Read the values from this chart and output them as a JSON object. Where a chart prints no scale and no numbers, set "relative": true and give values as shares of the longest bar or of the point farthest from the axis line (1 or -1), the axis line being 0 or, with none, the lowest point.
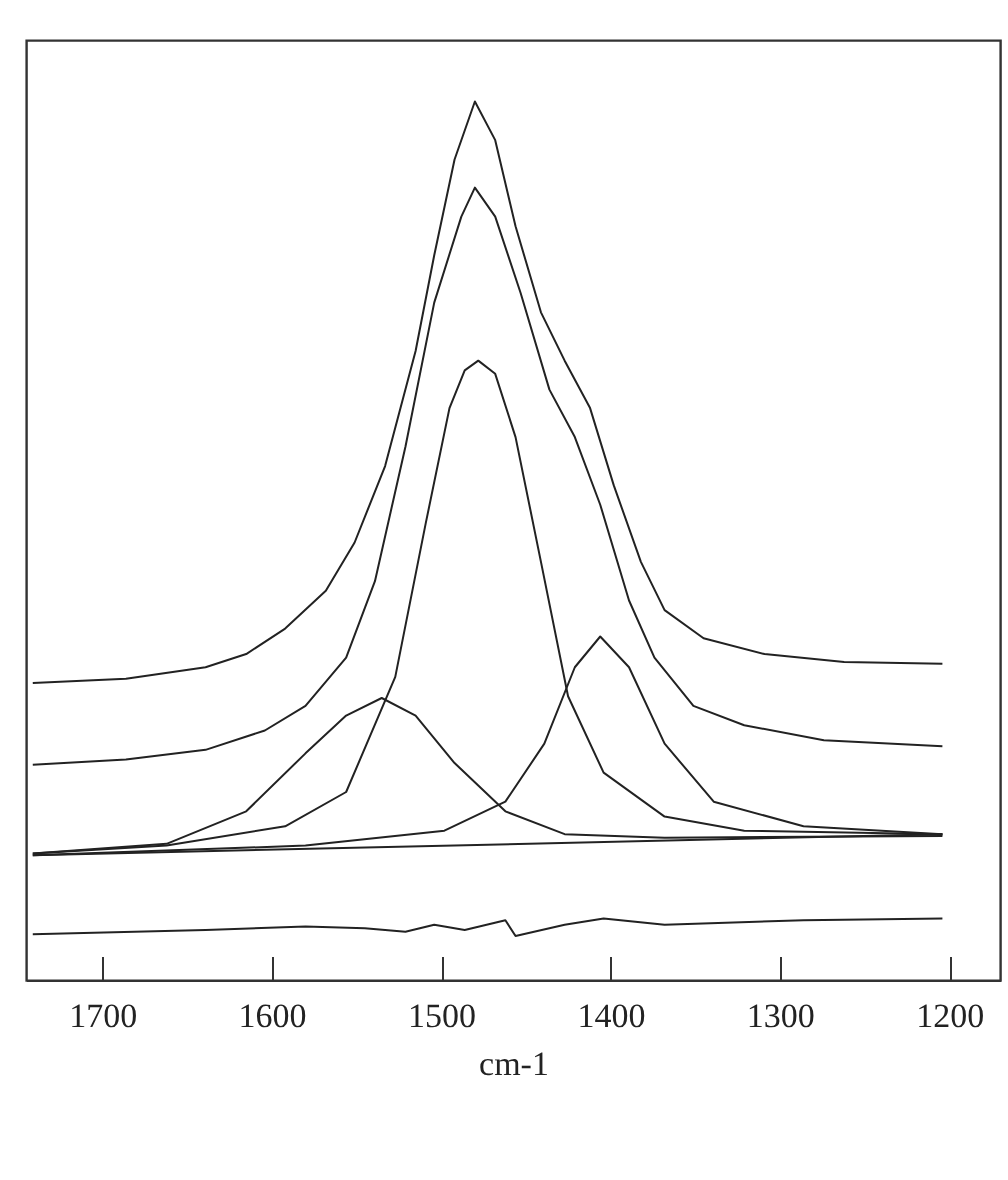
{
  "chart_data": {
    "type": "line",
    "xlabel": "cm-1",
    "relative": true,
    "xlim": [
      1745,
      1170
    ],
    "xticks": [
      1700,
      1600,
      1500,
      1400,
      1300,
      1200
    ],
    "marker": "none",
    "line_style": "solid",
    "series": [
      {
        "color": "#222222",
        "x": [
          1741,
          1686,
          1639,
          1615,
          1592,
          1568,
          1551,
          1533,
          1515,
          1504,
          1492,
          1480,
          1468,
          1456,
          1441,
          1427,
          1412,
          1398,
          1382,
          1368,
          1345,
          1309,
          1262,
          1204
        ],
        "values": [
          0.338,
          0.343,
          0.356,
          0.371,
          0.4,
          0.443,
          0.498,
          0.585,
          0.716,
          0.825,
          0.934,
          1.0,
          0.956,
          0.858,
          0.76,
          0.705,
          0.651,
          0.563,
          0.476,
          0.421,
          0.389,
          0.371,
          0.362,
          0.36
        ]
      },
      {
        "color": "#222222",
        "x": [
          1741,
          1686,
          1639,
          1604,
          1580,
          1556,
          1539,
          1521,
          1504,
          1488,
          1480,
          1468,
          1453,
          1436,
          1421,
          1406,
          1389,
          1374,
          1351,
          1321,
          1274,
          1204
        ],
        "values": [
          0.245,
          0.251,
          0.262,
          0.284,
          0.312,
          0.367,
          0.454,
          0.607,
          0.771,
          0.869,
          0.902,
          0.869,
          0.782,
          0.672,
          0.618,
          0.541,
          0.432,
          0.367,
          0.312,
          0.29,
          0.273,
          0.266
        ]
      },
      {
        "color": "#222222",
        "x": [
          1741,
          1662,
          1592,
          1556,
          1527,
          1509,
          1495,
          1486,
          1478,
          1468,
          1456,
          1441,
          1425,
          1404,
          1368,
          1321,
          1204
        ],
        "values": [
          0.144,
          0.153,
          0.175,
          0.214,
          0.345,
          0.52,
          0.651,
          0.694,
          0.705,
          0.69,
          0.618,
          0.476,
          0.323,
          0.236,
          0.186,
          0.17,
          0.166
        ]
      },
      {
        "color": "#222222",
        "x": [
          1741,
          1662,
          1615,
          1580,
          1556,
          1535,
          1515,
          1492,
          1462,
          1427,
          1368,
          1204
        ],
        "values": [
          0.144,
          0.155,
          0.192,
          0.258,
          0.301,
          0.321,
          0.301,
          0.247,
          0.192,
          0.166,
          0.162,
          0.164
        ]
      },
      {
        "color": "#222222",
        "x": [
          1741,
          1580,
          1498,
          1462,
          1439,
          1421,
          1406,
          1389,
          1368,
          1339,
          1286,
          1204
        ],
        "values": [
          0.142,
          0.153,
          0.17,
          0.203,
          0.269,
          0.356,
          0.391,
          0.356,
          0.269,
          0.203,
          0.175,
          0.166
        ]
      },
      {
        "color": "#222222",
        "x": [
          1741,
          1204
        ],
        "values": [
          0.142,
          0.166
        ]
      },
      {
        "color": "#222222",
        "x": [
          1741,
          1639,
          1580,
          1545,
          1521,
          1504,
          1486,
          1462,
          1456,
          1427,
          1404,
          1368,
          1286,
          1204
        ],
        "values": [
          0.052,
          0.057,
          0.061,
          0.059,
          0.055,
          0.063,
          0.057,
          0.068,
          0.05,
          0.063,
          0.07,
          0.063,
          0.068,
          0.07
        ]
      }
    ]
  }
}
